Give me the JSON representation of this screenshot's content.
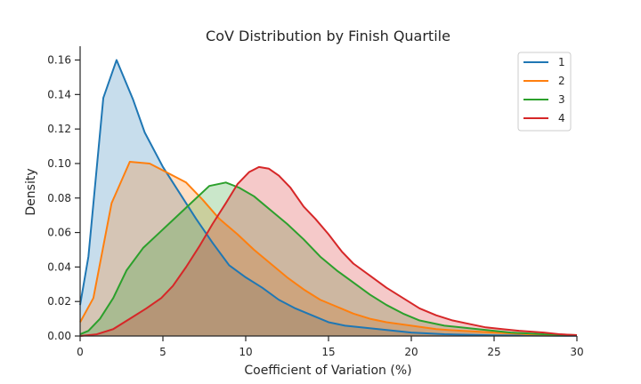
{
  "chart_data": {
    "type": "area",
    "title": "CoV Distribution by Finish Quartile",
    "xlabel": "Coefficient of Variation (%)",
    "ylabel": "Density",
    "xlim": [
      0,
      30
    ],
    "ylim": [
      0,
      0.168
    ],
    "xticks": [
      0,
      5,
      10,
      15,
      20,
      25,
      30
    ],
    "yticks": [
      0.0,
      0.02,
      0.04,
      0.06,
      0.08,
      0.1,
      0.12,
      0.14,
      0.16
    ],
    "grid": false,
    "legend_position": "top-right",
    "series": [
      {
        "name": "1",
        "color": "#1f77b4",
        "fill_opacity": 0.25,
        "points": [
          [
            0,
            0.018
          ],
          [
            0.5,
            0.046
          ],
          [
            1.4,
            0.138
          ],
          [
            2.2,
            0.16
          ],
          [
            3.2,
            0.137
          ],
          [
            3.9,
            0.118
          ],
          [
            5,
            0.098
          ],
          [
            6,
            0.083
          ],
          [
            7,
            0.068
          ],
          [
            8,
            0.054
          ],
          [
            9,
            0.041
          ],
          [
            10,
            0.034
          ],
          [
            11,
            0.028
          ],
          [
            12,
            0.021
          ],
          [
            13,
            0.016
          ],
          [
            14,
            0.012
          ],
          [
            15,
            0.008
          ],
          [
            16,
            0.006
          ],
          [
            18,
            0.004
          ],
          [
            20,
            0.002
          ],
          [
            22,
            0.001
          ],
          [
            25,
            0.0004
          ],
          [
            30,
            0.0001
          ]
        ]
      },
      {
        "name": "2",
        "color": "#ff7f0e",
        "fill_opacity": 0.25,
        "points": [
          [
            0,
            0.008
          ],
          [
            0.8,
            0.022
          ],
          [
            1.9,
            0.077
          ],
          [
            3.0,
            0.101
          ],
          [
            4.2,
            0.1
          ],
          [
            5.2,
            0.095
          ],
          [
            6.4,
            0.089
          ],
          [
            7.4,
            0.079
          ],
          [
            8.4,
            0.068
          ],
          [
            9.5,
            0.059
          ],
          [
            10.5,
            0.05
          ],
          [
            11.5,
            0.042
          ],
          [
            12.5,
            0.034
          ],
          [
            13.5,
            0.027
          ],
          [
            14.5,
            0.021
          ],
          [
            15.5,
            0.017
          ],
          [
            16.5,
            0.013
          ],
          [
            17.5,
            0.01
          ],
          [
            18.5,
            0.008
          ],
          [
            20,
            0.006
          ],
          [
            21.5,
            0.004
          ],
          [
            23,
            0.003
          ],
          [
            25,
            0.002
          ],
          [
            27,
            0.001
          ],
          [
            30,
            0.0005
          ]
        ]
      },
      {
        "name": "3",
        "color": "#2ca02c",
        "fill_opacity": 0.25,
        "points": [
          [
            0,
            0.001
          ],
          [
            0.5,
            0.003
          ],
          [
            1.2,
            0.01
          ],
          [
            2.0,
            0.022
          ],
          [
            2.8,
            0.038
          ],
          [
            3.8,
            0.051
          ],
          [
            4.8,
            0.06
          ],
          [
            5.8,
            0.069
          ],
          [
            6.8,
            0.078
          ],
          [
            7.8,
            0.087
          ],
          [
            8.8,
            0.089
          ],
          [
            9.6,
            0.086
          ],
          [
            10.5,
            0.081
          ],
          [
            11.5,
            0.073
          ],
          [
            12.5,
            0.065
          ],
          [
            13.5,
            0.056
          ],
          [
            14.5,
            0.046
          ],
          [
            15.5,
            0.038
          ],
          [
            16.5,
            0.031
          ],
          [
            17.5,
            0.024
          ],
          [
            18.5,
            0.018
          ],
          [
            19.5,
            0.013
          ],
          [
            20.5,
            0.009
          ],
          [
            22,
            0.006
          ],
          [
            24,
            0.004
          ],
          [
            26,
            0.002
          ],
          [
            28,
            0.001
          ],
          [
            30,
            0.0005
          ]
        ]
      },
      {
        "name": "4",
        "color": "#d62728",
        "fill_opacity": 0.25,
        "points": [
          [
            0,
            0.0
          ],
          [
            1.0,
            0.001
          ],
          [
            2.0,
            0.004
          ],
          [
            3.0,
            0.01
          ],
          [
            4.0,
            0.016
          ],
          [
            4.9,
            0.022
          ],
          [
            5.6,
            0.029
          ],
          [
            6.4,
            0.04
          ],
          [
            7.2,
            0.052
          ],
          [
            8.0,
            0.065
          ],
          [
            8.8,
            0.077
          ],
          [
            9.5,
            0.088
          ],
          [
            10.2,
            0.095
          ],
          [
            10.8,
            0.098
          ],
          [
            11.4,
            0.097
          ],
          [
            12.0,
            0.093
          ],
          [
            12.7,
            0.086
          ],
          [
            13.5,
            0.075
          ],
          [
            14.2,
            0.068
          ],
          [
            15.0,
            0.059
          ],
          [
            15.8,
            0.049
          ],
          [
            16.5,
            0.042
          ],
          [
            17.5,
            0.035
          ],
          [
            18.5,
            0.028
          ],
          [
            19.5,
            0.022
          ],
          [
            20.5,
            0.016
          ],
          [
            21.5,
            0.012
          ],
          [
            22.5,
            0.009
          ],
          [
            23.5,
            0.007
          ],
          [
            24.5,
            0.005
          ],
          [
            25.5,
            0.004
          ],
          [
            26.5,
            0.003
          ],
          [
            28,
            0.002
          ],
          [
            29,
            0.001
          ],
          [
            30,
            0.0005
          ]
        ]
      }
    ]
  }
}
